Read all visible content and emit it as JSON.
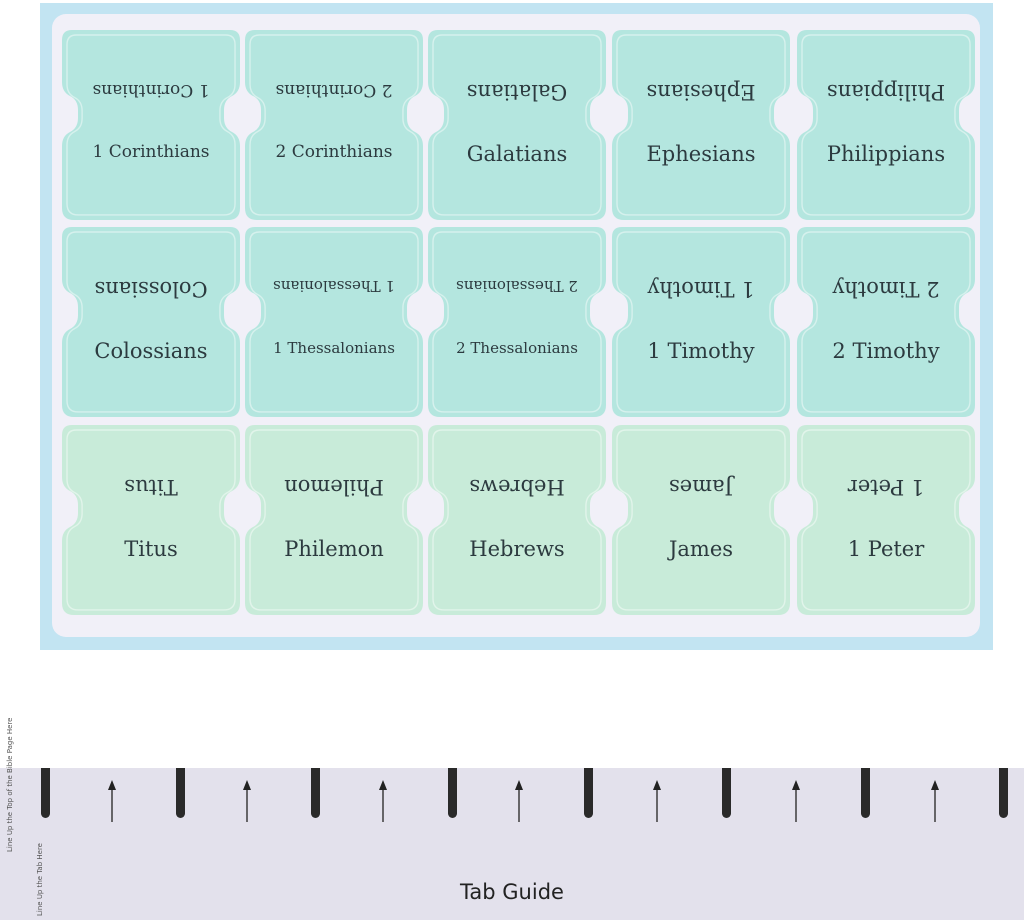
{
  "tabs": [
    {
      "label": "1 Corinthians",
      "row": 0
    },
    {
      "label": "2 Corinthians",
      "row": 0
    },
    {
      "label": "Galatians",
      "row": 0
    },
    {
      "label": "Ephesians",
      "row": 0
    },
    {
      "label": "Philippians",
      "row": 0
    },
    {
      "label": "Colossians",
      "row": 1
    },
    {
      "label": "1 Thessalonians",
      "row": 1
    },
    {
      "label": "2 Thessalonians",
      "row": 1
    },
    {
      "label": "1 Timothy",
      "row": 1
    },
    {
      "label": "2 Timothy",
      "row": 1
    },
    {
      "label": "Titus",
      "row": 2
    },
    {
      "label": "Philemon",
      "row": 2
    },
    {
      "label": "Hebrews",
      "row": 2
    },
    {
      "label": "James",
      "row": 2
    },
    {
      "label": "1 Peter",
      "row": 2
    }
  ],
  "colors": {
    "row_teal": "#b4e6df",
    "row_mint": "#c8ebd9",
    "sheet_border": "#c2e4f2",
    "ruler": "#e3e1ec"
  },
  "guide": {
    "title": "Tab Guide",
    "line_up_page": "Line Up the Top of the Bible Page Here",
    "line_up_tab": "Line Up the Tab Here"
  }
}
